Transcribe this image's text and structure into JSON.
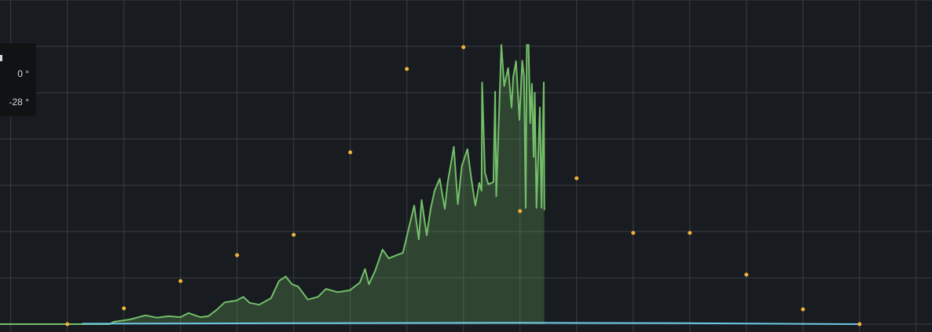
{
  "chart_data": {
    "type": "line",
    "title": "",
    "xlabel": "",
    "ylabel": "",
    "xlim": [
      -0.19,
      16.28
    ],
    "ylim": [
      -0.17,
      7.0
    ],
    "grid": true,
    "colors": {
      "background": "#181b1f",
      "area": "#73bf69",
      "points": "#f2b33d",
      "baseline": "#6ccae6",
      "grid": "#3a3d44"
    },
    "series": [
      {
        "kind": "area",
        "color": "#73bf69",
        "x": [
          -0.19,
          1.75,
          1.82,
          2.1,
          2.38,
          2.58,
          2.79,
          3.0,
          3.14,
          3.35,
          3.49,
          3.64,
          3.78,
          3.99,
          4.11,
          4.22,
          4.39,
          4.6,
          4.74,
          4.86,
          4.97,
          5.08,
          5.25,
          5.43,
          5.57,
          5.78,
          5.99,
          6.17,
          6.26,
          6.33,
          6.44,
          6.57,
          6.68,
          6.82,
          6.93,
          7.03,
          7.13,
          7.21,
          7.26,
          7.35,
          7.42,
          7.49,
          7.58,
          7.67,
          7.72,
          7.83,
          7.9,
          7.97,
          8.07,
          8.14,
          8.21,
          8.28,
          8.32,
          8.33,
          8.38,
          8.44,
          8.53,
          8.56,
          8.58,
          8.67,
          8.72,
          8.79,
          8.85,
          8.88,
          8.93,
          8.99,
          9.04,
          9.07,
          9.1,
          9.12,
          9.15,
          9.18,
          9.21,
          9.24,
          9.26,
          9.29,
          9.35,
          9.38,
          9.42,
          9.43
        ],
        "y": [
          0,
          0,
          0.05,
          0.1,
          0.19,
          0.14,
          0.17,
          0.15,
          0.24,
          0.15,
          0.17,
          0.31,
          0.47,
          0.51,
          0.59,
          0.46,
          0.42,
          0.56,
          0.93,
          1.03,
          0.86,
          0.81,
          0.53,
          0.59,
          0.76,
          0.69,
          0.73,
          0.9,
          1.19,
          0.86,
          1.15,
          1.61,
          1.42,
          1.49,
          1.54,
          2.05,
          2.56,
          1.83,
          2.68,
          1.92,
          2.49,
          2.88,
          3.14,
          2.49,
          3.05,
          3.83,
          2.59,
          3.41,
          3.78,
          3.14,
          2.56,
          3.05,
          2.88,
          5.22,
          3.27,
          3.02,
          3.07,
          5.02,
          2.76,
          6.03,
          5.14,
          5.53,
          4.68,
          5.34,
          5.68,
          4.41,
          5.69,
          5.36,
          2.51,
          6.03,
          6.03,
          4.34,
          5.19,
          3.61,
          5.0,
          2.51,
          4.68,
          2.51,
          5.22,
          2.46
        ]
      },
      {
        "kind": "line",
        "color": "#6ccae6",
        "x": [
          1.26,
          5,
          9,
          12,
          15
        ],
        "y": [
          0.01,
          0.02,
          0.03,
          0.02,
          0
        ]
      },
      {
        "kind": "points",
        "color": "#f2b33d",
        "x": [
          1,
          2,
          3,
          4,
          5,
          6,
          7,
          8,
          9,
          10,
          11,
          12,
          13,
          14,
          15
        ],
        "y": [
          0,
          0.34,
          0.93,
          1.49,
          1.93,
          3.71,
          5.51,
          5.98,
          2.44,
          3.15,
          1.97,
          1.97,
          1.07,
          0.32,
          0
        ]
      }
    ]
  },
  "tooltip": {
    "values": [
      "0 °",
      "-28 °"
    ]
  }
}
